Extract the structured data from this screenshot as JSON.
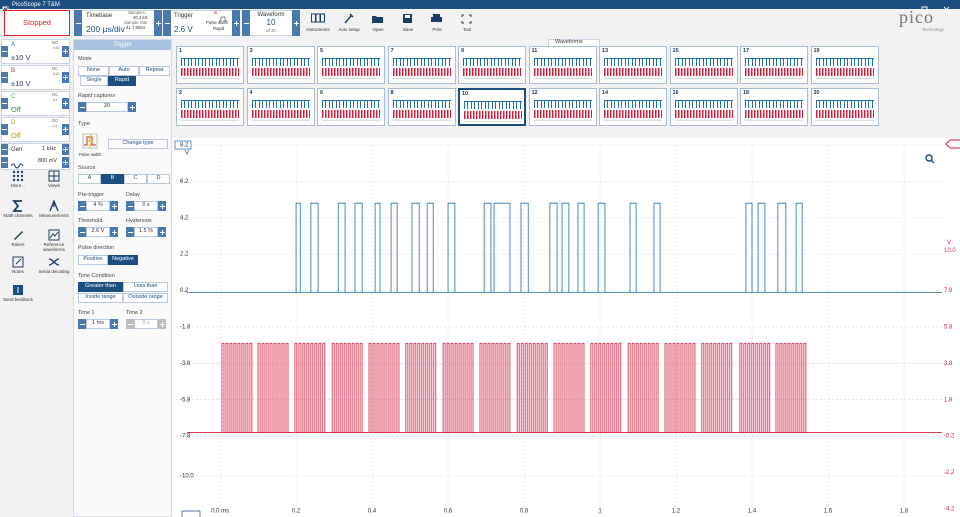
{
  "title_bar": {
    "title": "PicoScope 7 T&M"
  },
  "toolbar": {
    "status": "Stopped",
    "timebase_label": "Timebase",
    "timebase": "200 µs/div",
    "samples_label": "Samples",
    "samples": "40.3 kS",
    "sample_rate_label": "Sample rate",
    "sample_rate": "41.7 MS/s",
    "trigger_label": "Trigger",
    "trigger_level": "2.6 V",
    "trigger_channel": "B",
    "trigger_type": "Pulse width",
    "trigger_mode": "Rapid",
    "waveform_label": "Waveform",
    "waveform": "10",
    "waveform_of": "of 20",
    "tools": [
      "Instruments",
      "Auto setup",
      "Open",
      "Save",
      "Print",
      "Tool"
    ],
    "logo": "pico",
    "logo_sub": "Technology"
  },
  "channels": [
    {
      "name": "A",
      "coupling": "DC",
      "probe": "x10",
      "range": "±10 V",
      "color": "#1f6fae"
    },
    {
      "name": "B",
      "coupling": "DC",
      "probe": "x10",
      "range": "±10 V",
      "color": "#d41e3c"
    },
    {
      "name": "C",
      "coupling": "DC",
      "probe": "x1",
      "range": "Off",
      "color": "#3a9a3a"
    },
    {
      "name": "D",
      "coupling": "DC",
      "probe": "x1",
      "range": "Off",
      "color": "#b8a000"
    }
  ],
  "generator": {
    "name": "Gen",
    "frequency": "1 kHz",
    "amplitude": "800 mV"
  },
  "side_tools": [
    "More...",
    "Views",
    "Math channels",
    "Measurements",
    "Rulers",
    "Reference waveforms",
    "Notes",
    "Serial decoding",
    "Send feedback"
  ],
  "trigger_panel": {
    "title": "Trigger",
    "mode_label": "Mode",
    "modes": [
      "None",
      "Auto",
      "Repeat",
      "Single",
      "Rapid"
    ],
    "rapid_captures_label": "Rapid captures",
    "rapid_captures": "20",
    "type_label": "Type",
    "type": "Pulse width",
    "change_type": "Change type",
    "source_label": "Source",
    "sources": [
      "A",
      "B",
      "C",
      "D"
    ],
    "pre_trigger_label": "Pre-trigger",
    "pre_trigger": "4 %",
    "delay_label": "Delay",
    "delay": "0 s",
    "threshold_label": "Threshold",
    "threshold": "2.6 V",
    "hysteresis_label": "Hysteresis",
    "hysteresis": "1.5 %",
    "pulse_direction_label": "Pulse direction",
    "directions": [
      "Positive",
      "Negative"
    ],
    "time_condition_label": "Time Condition",
    "conditions": [
      "Greater than",
      "Less than",
      "Inside range",
      "Outside range"
    ],
    "time1_label": "Time 1",
    "time1": "1 ms",
    "time2_label": "Time 2",
    "time2": "0 s"
  },
  "waveforms": {
    "title": "Waveforms",
    "rows": [
      [
        1,
        3,
        5,
        7,
        9,
        11,
        13,
        15,
        17,
        19
      ],
      [
        2,
        4,
        6,
        8,
        10,
        12,
        14,
        16,
        18,
        20
      ]
    ],
    "selected": 10
  },
  "chart_data": {
    "type": "line",
    "xlim": [
      -0.116,
      1.9
    ],
    "xticks": [
      {
        "value": 0,
        "label": "0.0 ms"
      },
      0.2,
      0.4,
      0.6,
      0.8,
      1.0,
      1.2,
      1.4,
      1.6,
      1.8
    ],
    "ylim": [
      -11.7,
      8.2
    ],
    "yticks": [
      8.2,
      6.2,
      4.2,
      2.2,
      0.2,
      -1.8,
      -3.8,
      -5.8,
      -7.8,
      {
        "value": -10,
        "label": "-10.0"
      }
    ],
    "y_unit": "V",
    "y2lim": [
      -4.1,
      15.8
    ],
    "y2ticks": [
      {
        "value": 10,
        "label": "10.0"
      },
      7.8,
      5.8,
      3.8,
      1.8,
      -0.2,
      -2.2,
      -4.2
    ],
    "y2_unit": "V",
    "grid": true,
    "series": [
      {
        "color": "#1f6fae",
        "low": 0.1,
        "high": 5.0,
        "pulses": [
          [
            0.2,
            0.211
          ],
          [
            0.239,
            0.258
          ],
          [
            0.311,
            0.329
          ],
          [
            0.355,
            0.374
          ],
          [
            0.408,
            0.421
          ],
          [
            0.45,
            0.466
          ],
          [
            0.505,
            0.524
          ],
          [
            0.545,
            0.561
          ],
          [
            0.6,
            0.618
          ],
          [
            0.695,
            0.713
          ],
          [
            0.721,
            0.763
          ],
          [
            0.792,
            0.811
          ],
          [
            0.868,
            0.887
          ],
          [
            0.9,
            0.918
          ],
          [
            0.942,
            0.958
          ],
          [
            0.995,
            1.013
          ],
          [
            1.079,
            1.095
          ],
          [
            1.142,
            1.158
          ],
          [
            1.384,
            1.4
          ],
          [
            1.416,
            1.434
          ],
          [
            1.468,
            1.489
          ],
          [
            1.516,
            1.532
          ]
        ]
      },
      {
        "color": "#d41e3c",
        "axis": "y2",
        "low": 0,
        "high": 4.9,
        "pulses_per_burst": 8,
        "bursts": [
          [
            0.005,
            0.089
          ],
          [
            0.1,
            0.184
          ],
          [
            0.197,
            0.281
          ],
          [
            0.295,
            0.379
          ],
          [
            0.392,
            0.476
          ],
          [
            0.489,
            0.573
          ],
          [
            0.587,
            0.671
          ],
          [
            0.684,
            0.768
          ],
          [
            0.782,
            0.866
          ],
          [
            0.879,
            0.963
          ],
          [
            0.976,
            1.06
          ],
          [
            1.074,
            1.158
          ],
          [
            1.171,
            1.255
          ],
          [
            1.268,
            1.352
          ],
          [
            1.368,
            1.452
          ],
          [
            1.463,
            1.547
          ]
        ]
      }
    ]
  }
}
